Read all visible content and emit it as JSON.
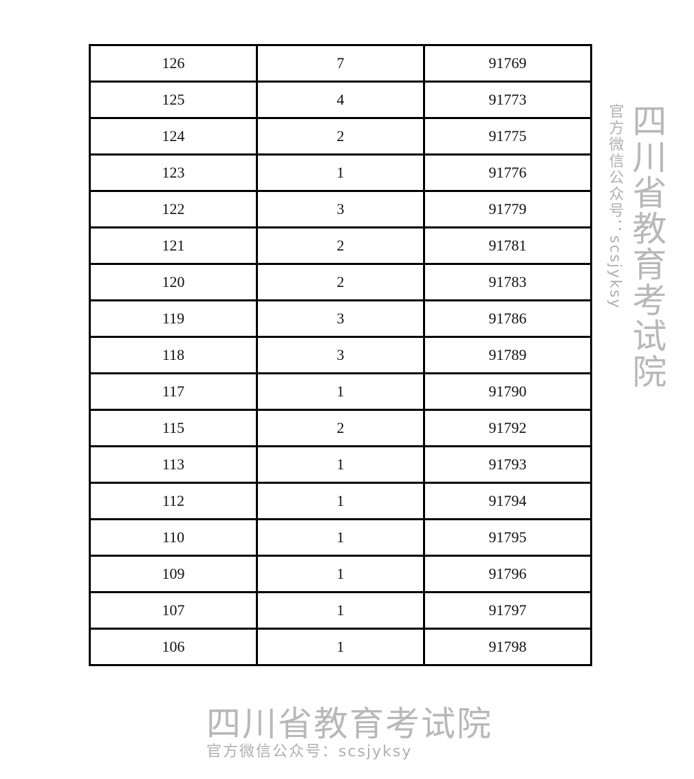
{
  "table": {
    "rows": [
      [
        "126",
        "7",
        "91769"
      ],
      [
        "125",
        "4",
        "91773"
      ],
      [
        "124",
        "2",
        "91775"
      ],
      [
        "123",
        "1",
        "91776"
      ],
      [
        "122",
        "3",
        "91779"
      ],
      [
        "121",
        "2",
        "91781"
      ],
      [
        "120",
        "2",
        "91783"
      ],
      [
        "119",
        "3",
        "91786"
      ],
      [
        "118",
        "3",
        "91789"
      ],
      [
        "117",
        "1",
        "91790"
      ],
      [
        "115",
        "2",
        "91792"
      ],
      [
        "113",
        "1",
        "91793"
      ],
      [
        "112",
        "1",
        "91794"
      ],
      [
        "110",
        "1",
        "91795"
      ],
      [
        "109",
        "1",
        "91796"
      ],
      [
        "107",
        "1",
        "91797"
      ],
      [
        "106",
        "1",
        "91798"
      ]
    ]
  },
  "watermark": {
    "title": "四川省教育考试院",
    "subtitle": "官方微信公众号：scsjyksy"
  }
}
